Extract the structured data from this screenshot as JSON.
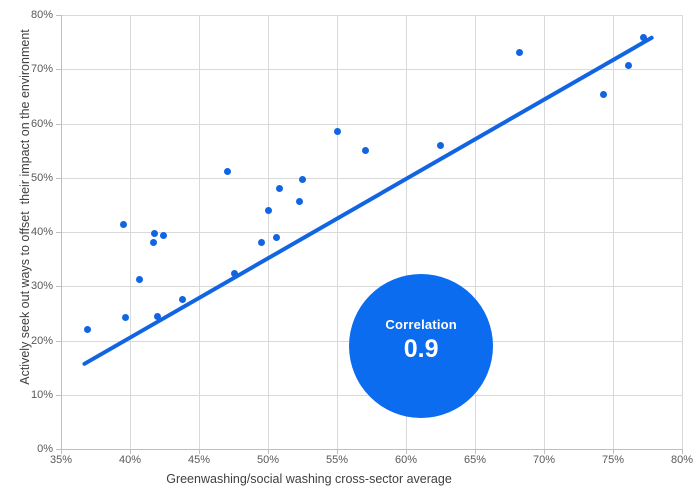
{
  "chart_data": {
    "type": "scatter",
    "title": "",
    "xlabel": "Greenwashing/social washing cross-sector average",
    "ylabel": "Actively seek out ways to offset  their impact on the environment",
    "xlim": [
      35,
      80
    ],
    "ylim": [
      0,
      80
    ],
    "x_ticks": [
      35,
      40,
      45,
      50,
      55,
      60,
      65,
      70,
      75,
      80
    ],
    "x_tick_labels": [
      "35%",
      "40%",
      "45%",
      "50%",
      "55%",
      "60%",
      "65%",
      "70%",
      "75%",
      "80%"
    ],
    "y_ticks": [
      0,
      10,
      20,
      30,
      40,
      50,
      60,
      70,
      80
    ],
    "y_tick_labels": [
      "0%",
      "10%",
      "20%",
      "30%",
      "40%",
      "50%",
      "60%",
      "70%",
      "80%"
    ],
    "grid": true,
    "legend": "none",
    "points": [
      [
        36.9,
        22.1
      ],
      [
        39.5,
        41.3
      ],
      [
        39.7,
        24.3
      ],
      [
        40.7,
        31.3
      ],
      [
        41.7,
        38.0
      ],
      [
        41.8,
        39.8
      ],
      [
        42.4,
        39.3
      ],
      [
        42.0,
        24.5
      ],
      [
        43.8,
        27.5
      ],
      [
        47.1,
        51.2
      ],
      [
        47.6,
        32.4
      ],
      [
        49.5,
        38.0
      ],
      [
        50.0,
        43.9
      ],
      [
        50.6,
        38.9
      ],
      [
        50.8,
        48.1
      ],
      [
        52.3,
        45.7
      ],
      [
        52.5,
        49.6
      ],
      [
        55.0,
        58.6
      ],
      [
        57.1,
        55.1
      ],
      [
        62.5,
        56.0
      ],
      [
        68.2,
        73.0
      ],
      [
        74.3,
        65.3
      ],
      [
        76.1,
        70.6
      ],
      [
        77.2,
        75.9
      ]
    ],
    "trendline": {
      "x_start": 36.7,
      "y_start": 15.7,
      "x_end": 77.8,
      "y_end": 75.8
    },
    "annotation": {
      "label": "Correlation",
      "value": "0.9",
      "center_x": 61.1,
      "center_y": 19.0,
      "radius_px": 72
    },
    "colors": {
      "point": "#1165e2",
      "trendline": "#1165e2",
      "annotation_circle": "#0b6cf0",
      "annotation_text": "#ffffff",
      "gridline": "#d9d9d9",
      "axis_line": "#bfbfbf",
      "tick_label": "#595959",
      "axis_title": "#404040"
    }
  }
}
